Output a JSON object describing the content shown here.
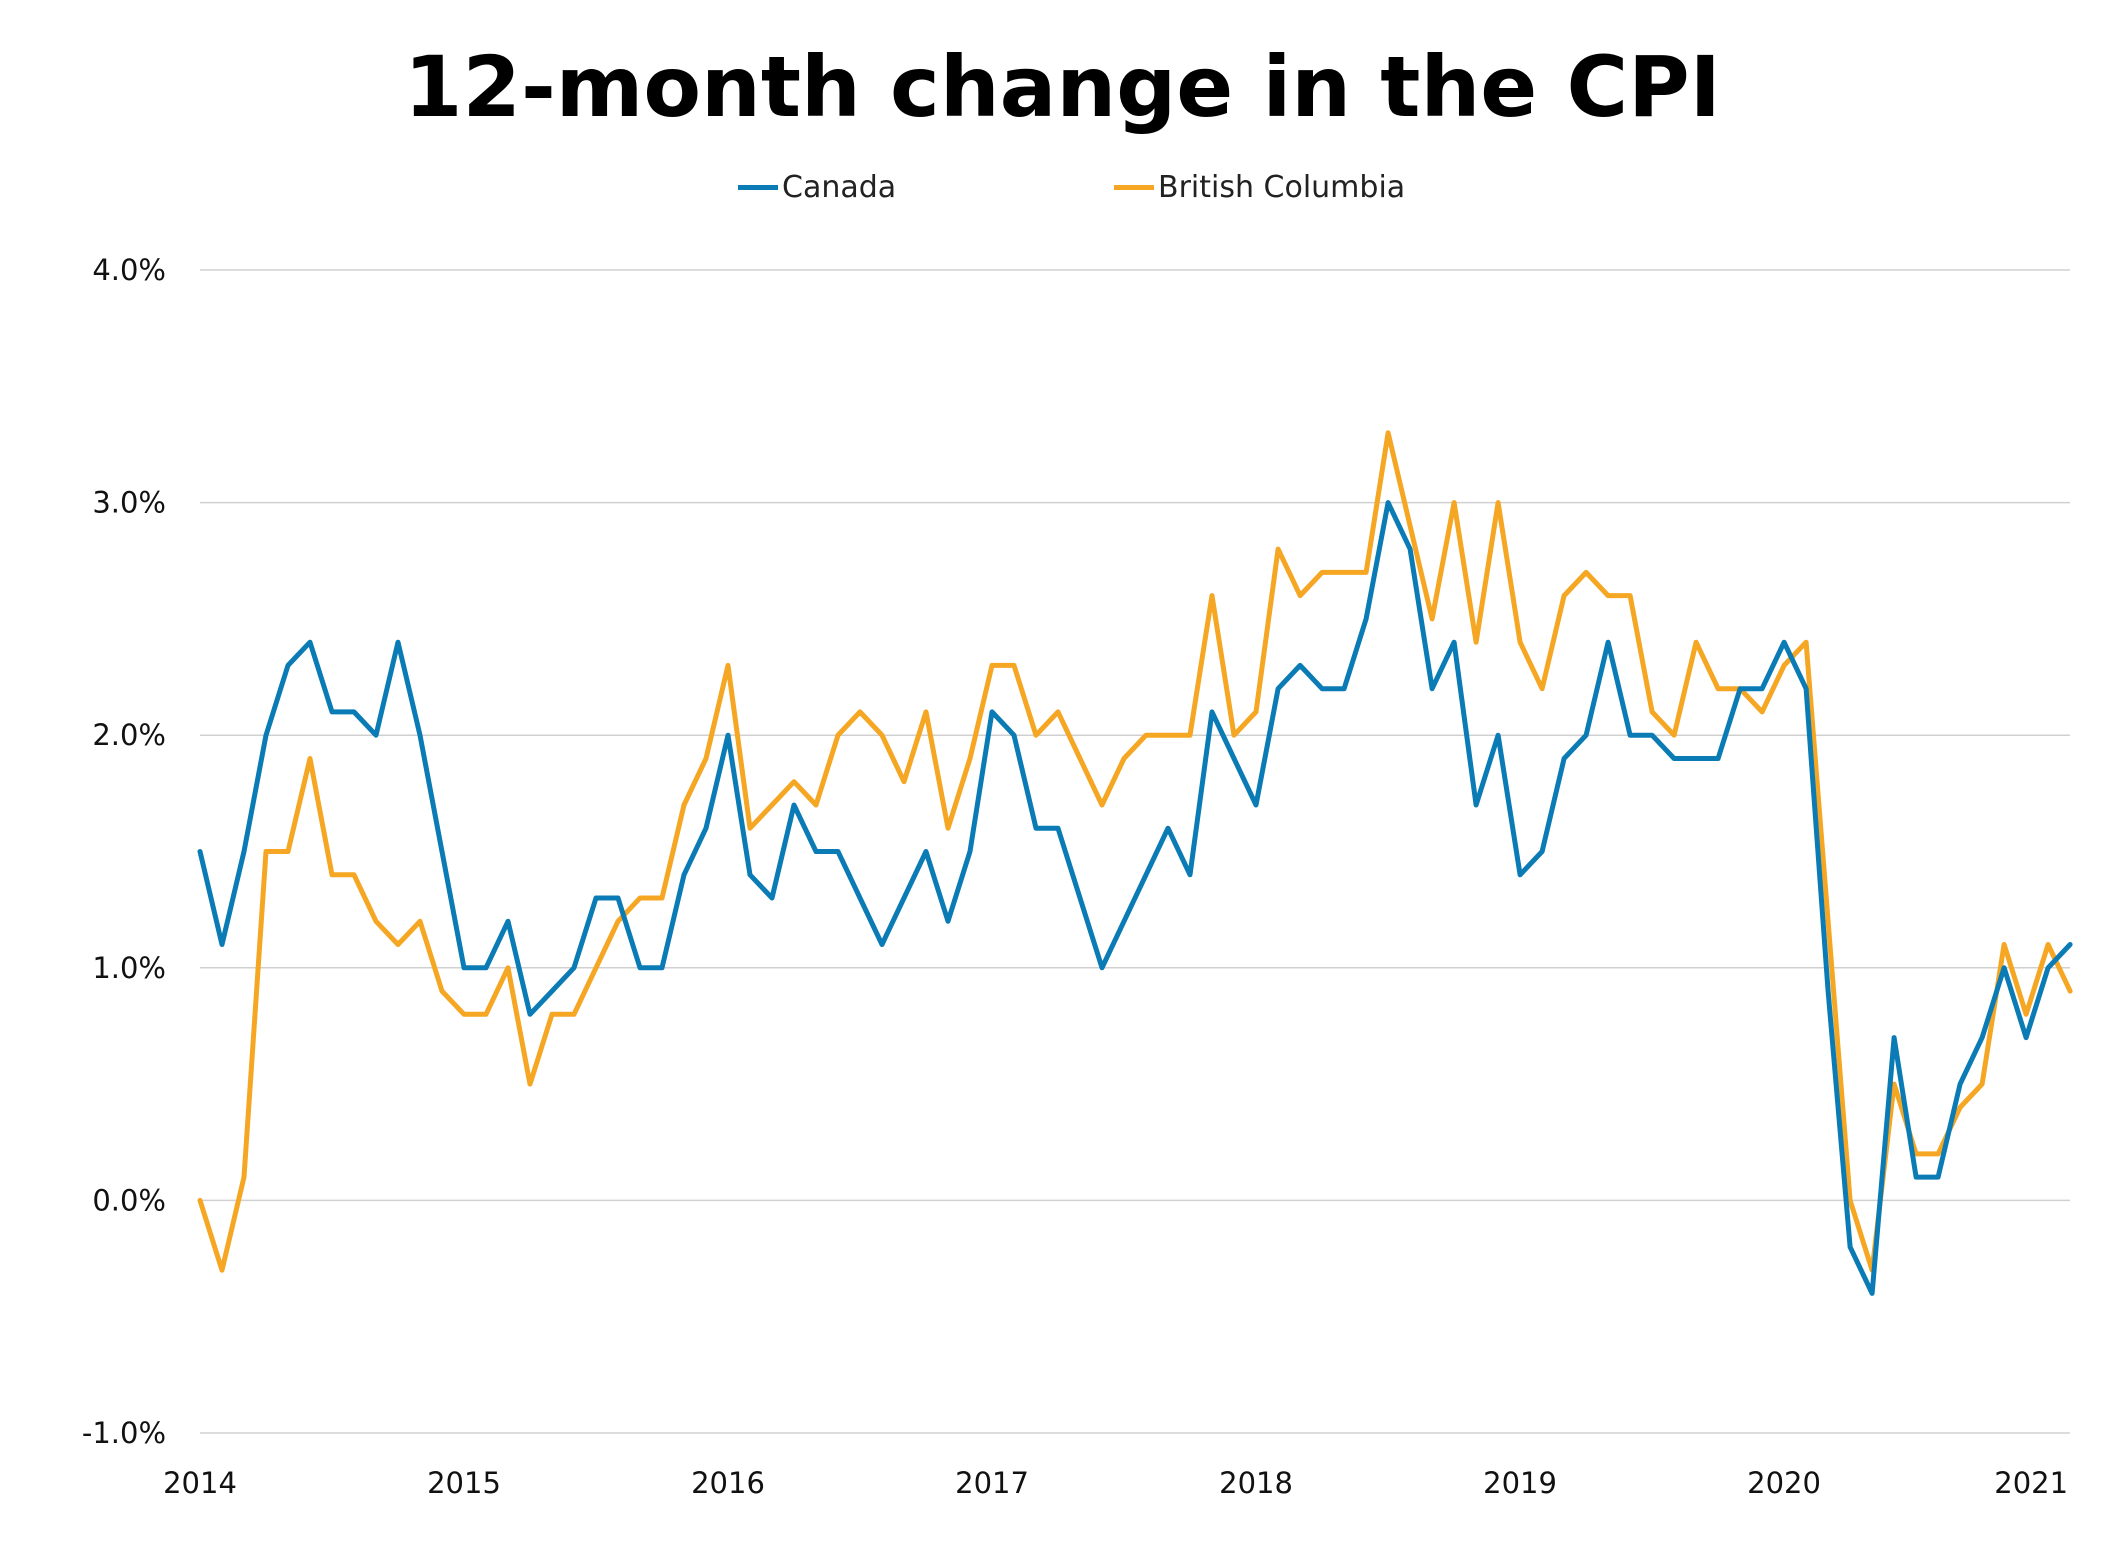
{
  "chart_data": {
    "type": "line",
    "title": "12-month change in the CPI",
    "xlabel": "",
    "ylabel": "",
    "ylim": [
      -1.0,
      4.0
    ],
    "yticks": [
      -1.0,
      0.0,
      1.0,
      2.0,
      3.0,
      4.0
    ],
    "ytick_labels": [
      "-1.0%",
      "0.0%",
      "1.0%",
      "2.0%",
      "3.0%",
      "4.0%"
    ],
    "xlim": [
      2014.0,
      2021.083
    ],
    "xticks": [
      2014,
      2015,
      2016,
      2017,
      2018,
      2019,
      2020,
      2021
    ],
    "xtick_labels": [
      "2014",
      "2015",
      "2016",
      "2017",
      "2018",
      "2019",
      "2020",
      "2021"
    ],
    "grid": true,
    "legend_position": "top",
    "x_start": "2014-01",
    "x_step": "month",
    "series": [
      {
        "name": "Canada",
        "color": "#0a7bb5",
        "values": [
          1.5,
          1.1,
          1.5,
          2.0,
          2.3,
          2.4,
          2.1,
          2.1,
          2.0,
          2.4,
          2.0,
          1.5,
          1.0,
          1.0,
          1.2,
          0.8,
          0.9,
          1.0,
          1.3,
          1.3,
          1.0,
          1.0,
          1.4,
          1.6,
          2.0,
          1.4,
          1.3,
          1.7,
          1.5,
          1.5,
          1.3,
          1.1,
          1.3,
          1.5,
          1.2,
          1.5,
          2.1,
          2.0,
          1.6,
          1.6,
          1.3,
          1.0,
          1.2,
          1.4,
          1.6,
          1.4,
          2.1,
          1.9,
          1.7,
          2.2,
          2.3,
          2.2,
          2.2,
          2.5,
          3.0,
          2.8,
          2.2,
          2.4,
          1.7,
          2.0,
          1.4,
          1.5,
          1.9,
          2.0,
          2.4,
          2.0,
          2.0,
          1.9,
          1.9,
          1.9,
          2.2,
          2.2,
          2.4,
          2.2,
          0.9,
          -0.2,
          -0.4,
          0.7,
          0.1,
          0.1,
          0.5,
          0.7,
          1.0,
          0.7,
          1.0,
          1.1
        ]
      },
      {
        "name": "British Columbia",
        "color": "#f5a623",
        "values": [
          0.0,
          -0.3,
          0.1,
          1.5,
          1.5,
          1.9,
          1.4,
          1.4,
          1.2,
          1.1,
          1.2,
          0.9,
          0.8,
          0.8,
          1.0,
          0.5,
          0.8,
          0.8,
          1.0,
          1.2,
          1.3,
          1.3,
          1.7,
          1.9,
          2.3,
          1.6,
          1.7,
          1.8,
          1.7,
          2.0,
          2.1,
          2.0,
          1.8,
          2.1,
          1.6,
          1.9,
          2.3,
          2.3,
          2.0,
          2.1,
          1.9,
          1.7,
          1.9,
          2.0,
          2.0,
          2.0,
          2.6,
          2.0,
          2.1,
          2.8,
          2.6,
          2.7,
          2.7,
          2.7,
          3.3,
          2.9,
          2.5,
          3.0,
          2.4,
          3.0,
          2.4,
          2.2,
          2.6,
          2.7,
          2.6,
          2.6,
          2.1,
          2.0,
          2.4,
          2.2,
          2.2,
          2.1,
          2.3,
          2.4,
          1.2,
          0.0,
          -0.3,
          0.5,
          0.2,
          0.2,
          0.4,
          0.5,
          1.1,
          0.8,
          1.1,
          0.9
        ]
      }
    ]
  }
}
